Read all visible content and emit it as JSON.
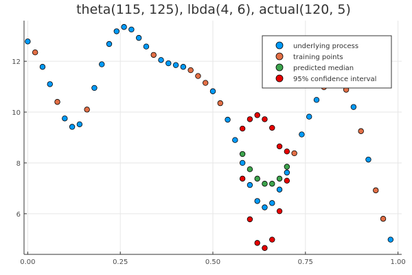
{
  "chart_data": {
    "type": "scatter",
    "title": "theta(115, 125), lbda(4, 6), actual(120, 5)",
    "xlabel": "",
    "ylabel": "",
    "xlim": [
      -0.01,
      1.01
    ],
    "ylim": [
      4.4,
      13.6
    ],
    "x_ticks": [
      0.0,
      0.25,
      0.5,
      0.75,
      1.0
    ],
    "x_tick_labels": [
      "0.00",
      "0.25",
      "0.50",
      "0.75",
      "1.00"
    ],
    "y_ticks": [
      6,
      8,
      10,
      12
    ],
    "y_tick_labels": [
      "6",
      "8",
      "10",
      "12"
    ],
    "grid": true,
    "legend_position": "top-right",
    "series": [
      {
        "name": "underlying process",
        "color": "#009af9",
        "points": [
          [
            0.0,
            12.78
          ],
          [
            0.04,
            11.78
          ],
          [
            0.06,
            11.1
          ],
          [
            0.1,
            9.75
          ],
          [
            0.12,
            9.42
          ],
          [
            0.14,
            9.52
          ],
          [
            0.18,
            10.95
          ],
          [
            0.2,
            11.88
          ],
          [
            0.22,
            12.68
          ],
          [
            0.24,
            13.18
          ],
          [
            0.26,
            13.35
          ],
          [
            0.28,
            13.25
          ],
          [
            0.3,
            12.92
          ],
          [
            0.32,
            12.58
          ],
          [
            0.36,
            12.05
          ],
          [
            0.38,
            11.92
          ],
          [
            0.4,
            11.85
          ],
          [
            0.42,
            11.78
          ],
          [
            0.5,
            10.82
          ],
          [
            0.54,
            9.7
          ],
          [
            0.56,
            8.9
          ],
          [
            0.58,
            8.0
          ],
          [
            0.6,
            7.13
          ],
          [
            0.62,
            6.5
          ],
          [
            0.64,
            6.25
          ],
          [
            0.66,
            6.42
          ],
          [
            0.68,
            6.95
          ],
          [
            0.7,
            7.62
          ],
          [
            0.74,
            9.12
          ],
          [
            0.76,
            9.82
          ],
          [
            0.78,
            10.48
          ],
          [
            0.88,
            10.2
          ],
          [
            0.92,
            8.13
          ],
          [
            0.98,
            4.98
          ]
        ]
      },
      {
        "name": "training points",
        "color": "#e26f46",
        "points": [
          [
            0.02,
            12.35
          ],
          [
            0.08,
            10.4
          ],
          [
            0.16,
            10.1
          ],
          [
            0.34,
            12.25
          ],
          [
            0.44,
            11.65
          ],
          [
            0.46,
            11.42
          ],
          [
            0.48,
            11.15
          ],
          [
            0.52,
            10.35
          ],
          [
            0.72,
            8.38
          ],
          [
            0.8,
            10.98
          ],
          [
            0.86,
            10.88
          ],
          [
            0.9,
            9.25
          ],
          [
            0.94,
            6.92
          ],
          [
            0.96,
            5.8
          ]
        ]
      },
      {
        "name": "predicted median",
        "color": "#3da44d",
        "points": [
          [
            0.58,
            8.35
          ],
          [
            0.6,
            7.75
          ],
          [
            0.62,
            7.38
          ],
          [
            0.64,
            7.18
          ],
          [
            0.66,
            7.18
          ],
          [
            0.68,
            7.38
          ],
          [
            0.7,
            7.85
          ]
        ]
      },
      {
        "name": "95% confidence interval",
        "color": "#e50000",
        "points": [
          [
            0.58,
            9.35
          ],
          [
            0.6,
            9.72
          ],
          [
            0.62,
            9.88
          ],
          [
            0.64,
            9.72
          ],
          [
            0.66,
            9.38
          ],
          [
            0.68,
            8.65
          ],
          [
            0.7,
            8.45
          ],
          [
            0.58,
            7.38
          ],
          [
            0.6,
            5.78
          ],
          [
            0.62,
            4.85
          ],
          [
            0.64,
            4.65
          ],
          [
            0.66,
            4.98
          ],
          [
            0.68,
            6.1
          ],
          [
            0.7,
            7.3
          ]
        ]
      }
    ]
  }
}
